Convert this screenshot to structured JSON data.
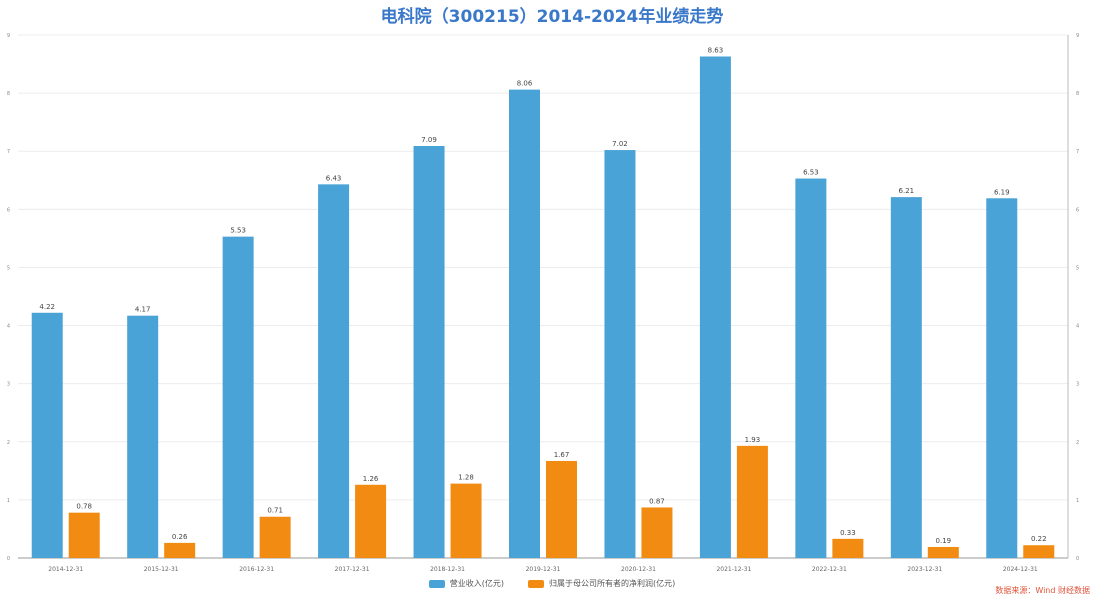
{
  "chart_data": {
    "type": "bar",
    "title": "电科院（300215）2014-2024年业绩走势",
    "categories": [
      "2014-12-31",
      "2015-12-31",
      "2016-12-31",
      "2017-12-31",
      "2018-12-31",
      "2019-12-31",
      "2020-12-31",
      "2021-12-31",
      "2022-12-31",
      "2023-12-31",
      "2024-12-31"
    ],
    "series": [
      {
        "name": "营业收入(亿元)",
        "color": "#4aa3d6",
        "values": [
          4.22,
          4.17,
          5.53,
          6.43,
          7.09,
          8.06,
          7.02,
          8.63,
          6.53,
          6.21,
          6.19
        ],
        "labels": [
          "4.22",
          "4.17",
          "5.53",
          "6.43",
          "7.09",
          "8.06",
          "7.02",
          "8.63",
          "6.53",
          "6.21",
          "6.19"
        ]
      },
      {
        "name": "归属于母公司所有者的净利润(亿元)",
        "color": "#f28b12",
        "values": [
          0.78,
          0.26,
          0.71,
          1.26,
          1.28,
          1.67,
          0.87,
          1.93,
          0.33,
          0.19,
          0.22
        ],
        "labels": [
          "0.78",
          "0.26",
          "0.71",
          "1.26",
          "1.28",
          "1.67",
          "0.87",
          "1.93",
          "0.33",
          "0.19",
          "0.22"
        ]
      }
    ],
    "ylim": [
      0,
      9
    ],
    "yticks": [
      "0",
      "1",
      "2",
      "3",
      "4",
      "5",
      "6",
      "7",
      "8",
      "9"
    ],
    "grid": true,
    "legend": "bottom"
  },
  "source_note": "数据来源：Wind  财经数据"
}
